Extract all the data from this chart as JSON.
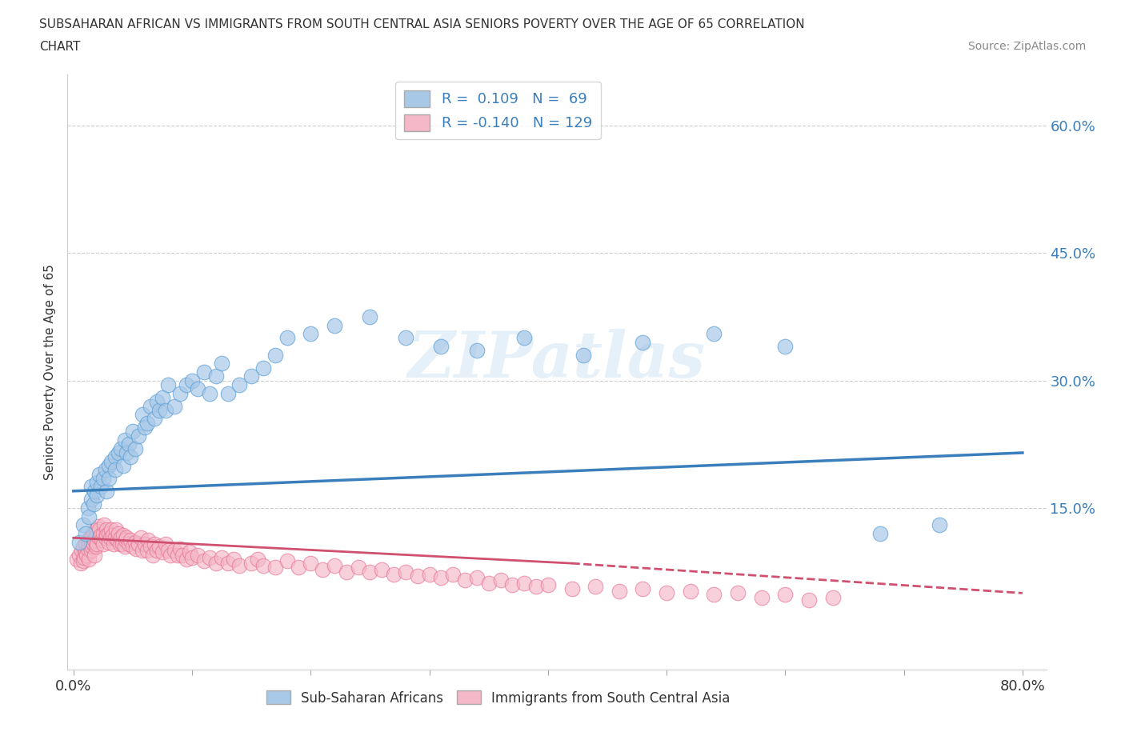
{
  "title_line1": "SUBSAHARAN AFRICAN VS IMMIGRANTS FROM SOUTH CENTRAL ASIA SENIORS POVERTY OVER THE AGE OF 65 CORRELATION",
  "title_line2": "CHART",
  "source": "Source: ZipAtlas.com",
  "ylabel": "Seniors Poverty Over the Age of 65",
  "xlim": [
    -0.005,
    0.82
  ],
  "ylim": [
    -0.04,
    0.66
  ],
  "legend1_R": "0.109",
  "legend1_N": "69",
  "legend2_R": "-0.140",
  "legend2_N": "129",
  "blue_color": "#a8c8e8",
  "blue_edge_color": "#5a9fd4",
  "pink_color": "#f4b8c8",
  "pink_edge_color": "#e87090",
  "blue_line_color": "#3a7fbc",
  "pink_line_color": "#d05070",
  "watermark": "ZIPatlas",
  "blue_trend": [
    0.17,
    0.215
  ],
  "pink_trend_solid": [
    0.115,
    0.085
  ],
  "pink_trend_x_split": 0.42,
  "pink_trend_dashed_end": 0.05,
  "scatter_blue_x": [
    0.005,
    0.008,
    0.01,
    0.012,
    0.013,
    0.015,
    0.015,
    0.017,
    0.018,
    0.02,
    0.02,
    0.022,
    0.023,
    0.025,
    0.027,
    0.028,
    0.03,
    0.03,
    0.032,
    0.035,
    0.035,
    0.038,
    0.04,
    0.042,
    0.043,
    0.045,
    0.047,
    0.048,
    0.05,
    0.052,
    0.055,
    0.058,
    0.06,
    0.062,
    0.065,
    0.068,
    0.07,
    0.072,
    0.075,
    0.078,
    0.08,
    0.085,
    0.09,
    0.095,
    0.1,
    0.105,
    0.11,
    0.115,
    0.12,
    0.125,
    0.13,
    0.14,
    0.15,
    0.16,
    0.17,
    0.18,
    0.2,
    0.22,
    0.25,
    0.28,
    0.31,
    0.34,
    0.38,
    0.43,
    0.48,
    0.54,
    0.6,
    0.68,
    0.73
  ],
  "scatter_blue_y": [
    0.11,
    0.13,
    0.12,
    0.15,
    0.14,
    0.16,
    0.175,
    0.155,
    0.17,
    0.18,
    0.165,
    0.19,
    0.175,
    0.185,
    0.195,
    0.17,
    0.2,
    0.185,
    0.205,
    0.21,
    0.195,
    0.215,
    0.22,
    0.2,
    0.23,
    0.215,
    0.225,
    0.21,
    0.24,
    0.22,
    0.235,
    0.26,
    0.245,
    0.25,
    0.27,
    0.255,
    0.275,
    0.265,
    0.28,
    0.265,
    0.295,
    0.27,
    0.285,
    0.295,
    0.3,
    0.29,
    0.31,
    0.285,
    0.305,
    0.32,
    0.285,
    0.295,
    0.305,
    0.315,
    0.33,
    0.35,
    0.355,
    0.365,
    0.375,
    0.35,
    0.34,
    0.335,
    0.35,
    0.33,
    0.345,
    0.355,
    0.34,
    0.12,
    0.13
  ],
  "scatter_pink_x": [
    0.003,
    0.005,
    0.006,
    0.007,
    0.008,
    0.008,
    0.009,
    0.01,
    0.01,
    0.011,
    0.012,
    0.012,
    0.013,
    0.013,
    0.014,
    0.015,
    0.015,
    0.016,
    0.016,
    0.017,
    0.017,
    0.018,
    0.018,
    0.019,
    0.019,
    0.02,
    0.02,
    0.021,
    0.022,
    0.022,
    0.023,
    0.024,
    0.025,
    0.025,
    0.026,
    0.027,
    0.028,
    0.028,
    0.03,
    0.03,
    0.031,
    0.032,
    0.033,
    0.034,
    0.035,
    0.036,
    0.037,
    0.038,
    0.039,
    0.04,
    0.041,
    0.042,
    0.043,
    0.044,
    0.045,
    0.047,
    0.048,
    0.05,
    0.052,
    0.053,
    0.055,
    0.057,
    0.058,
    0.06,
    0.062,
    0.063,
    0.065,
    0.067,
    0.068,
    0.07,
    0.072,
    0.075,
    0.078,
    0.08,
    0.082,
    0.085,
    0.088,
    0.09,
    0.092,
    0.095,
    0.098,
    0.1,
    0.105,
    0.11,
    0.115,
    0.12,
    0.125,
    0.13,
    0.135,
    0.14,
    0.15,
    0.155,
    0.16,
    0.17,
    0.18,
    0.19,
    0.2,
    0.21,
    0.22,
    0.23,
    0.24,
    0.25,
    0.26,
    0.27,
    0.28,
    0.29,
    0.3,
    0.31,
    0.32,
    0.33,
    0.34,
    0.35,
    0.36,
    0.37,
    0.38,
    0.39,
    0.4,
    0.42,
    0.44,
    0.46,
    0.48,
    0.5,
    0.52,
    0.54,
    0.56,
    0.58,
    0.6,
    0.62,
    0.64
  ],
  "scatter_pink_y": [
    0.09,
    0.095,
    0.085,
    0.1,
    0.088,
    0.105,
    0.092,
    0.098,
    0.108,
    0.095,
    0.102,
    0.112,
    0.09,
    0.107,
    0.115,
    0.1,
    0.11,
    0.105,
    0.118,
    0.108,
    0.122,
    0.112,
    0.095,
    0.125,
    0.105,
    0.118,
    0.108,
    0.128,
    0.115,
    0.125,
    0.118,
    0.112,
    0.12,
    0.108,
    0.13,
    0.115,
    0.125,
    0.118,
    0.12,
    0.11,
    0.115,
    0.125,
    0.118,
    0.108,
    0.115,
    0.125,
    0.112,
    0.12,
    0.108,
    0.115,
    0.108,
    0.118,
    0.105,
    0.112,
    0.115,
    0.108,
    0.112,
    0.105,
    0.11,
    0.102,
    0.108,
    0.115,
    0.1,
    0.108,
    0.1,
    0.112,
    0.105,
    0.095,
    0.108,
    0.1,
    0.105,
    0.098,
    0.108,
    0.1,
    0.095,
    0.1,
    0.095,
    0.102,
    0.095,
    0.09,
    0.098,
    0.092,
    0.095,
    0.088,
    0.092,
    0.085,
    0.092,
    0.085,
    0.09,
    0.082,
    0.085,
    0.09,
    0.082,
    0.08,
    0.088,
    0.08,
    0.085,
    0.078,
    0.082,
    0.075,
    0.08,
    0.075,
    0.078,
    0.072,
    0.075,
    0.07,
    0.072,
    0.068,
    0.072,
    0.065,
    0.068,
    0.062,
    0.065,
    0.06,
    0.062,
    0.058,
    0.06,
    0.055,
    0.058,
    0.052,
    0.055,
    0.05,
    0.052,
    0.048,
    0.05,
    0.045,
    0.048,
    0.042,
    0.045
  ]
}
